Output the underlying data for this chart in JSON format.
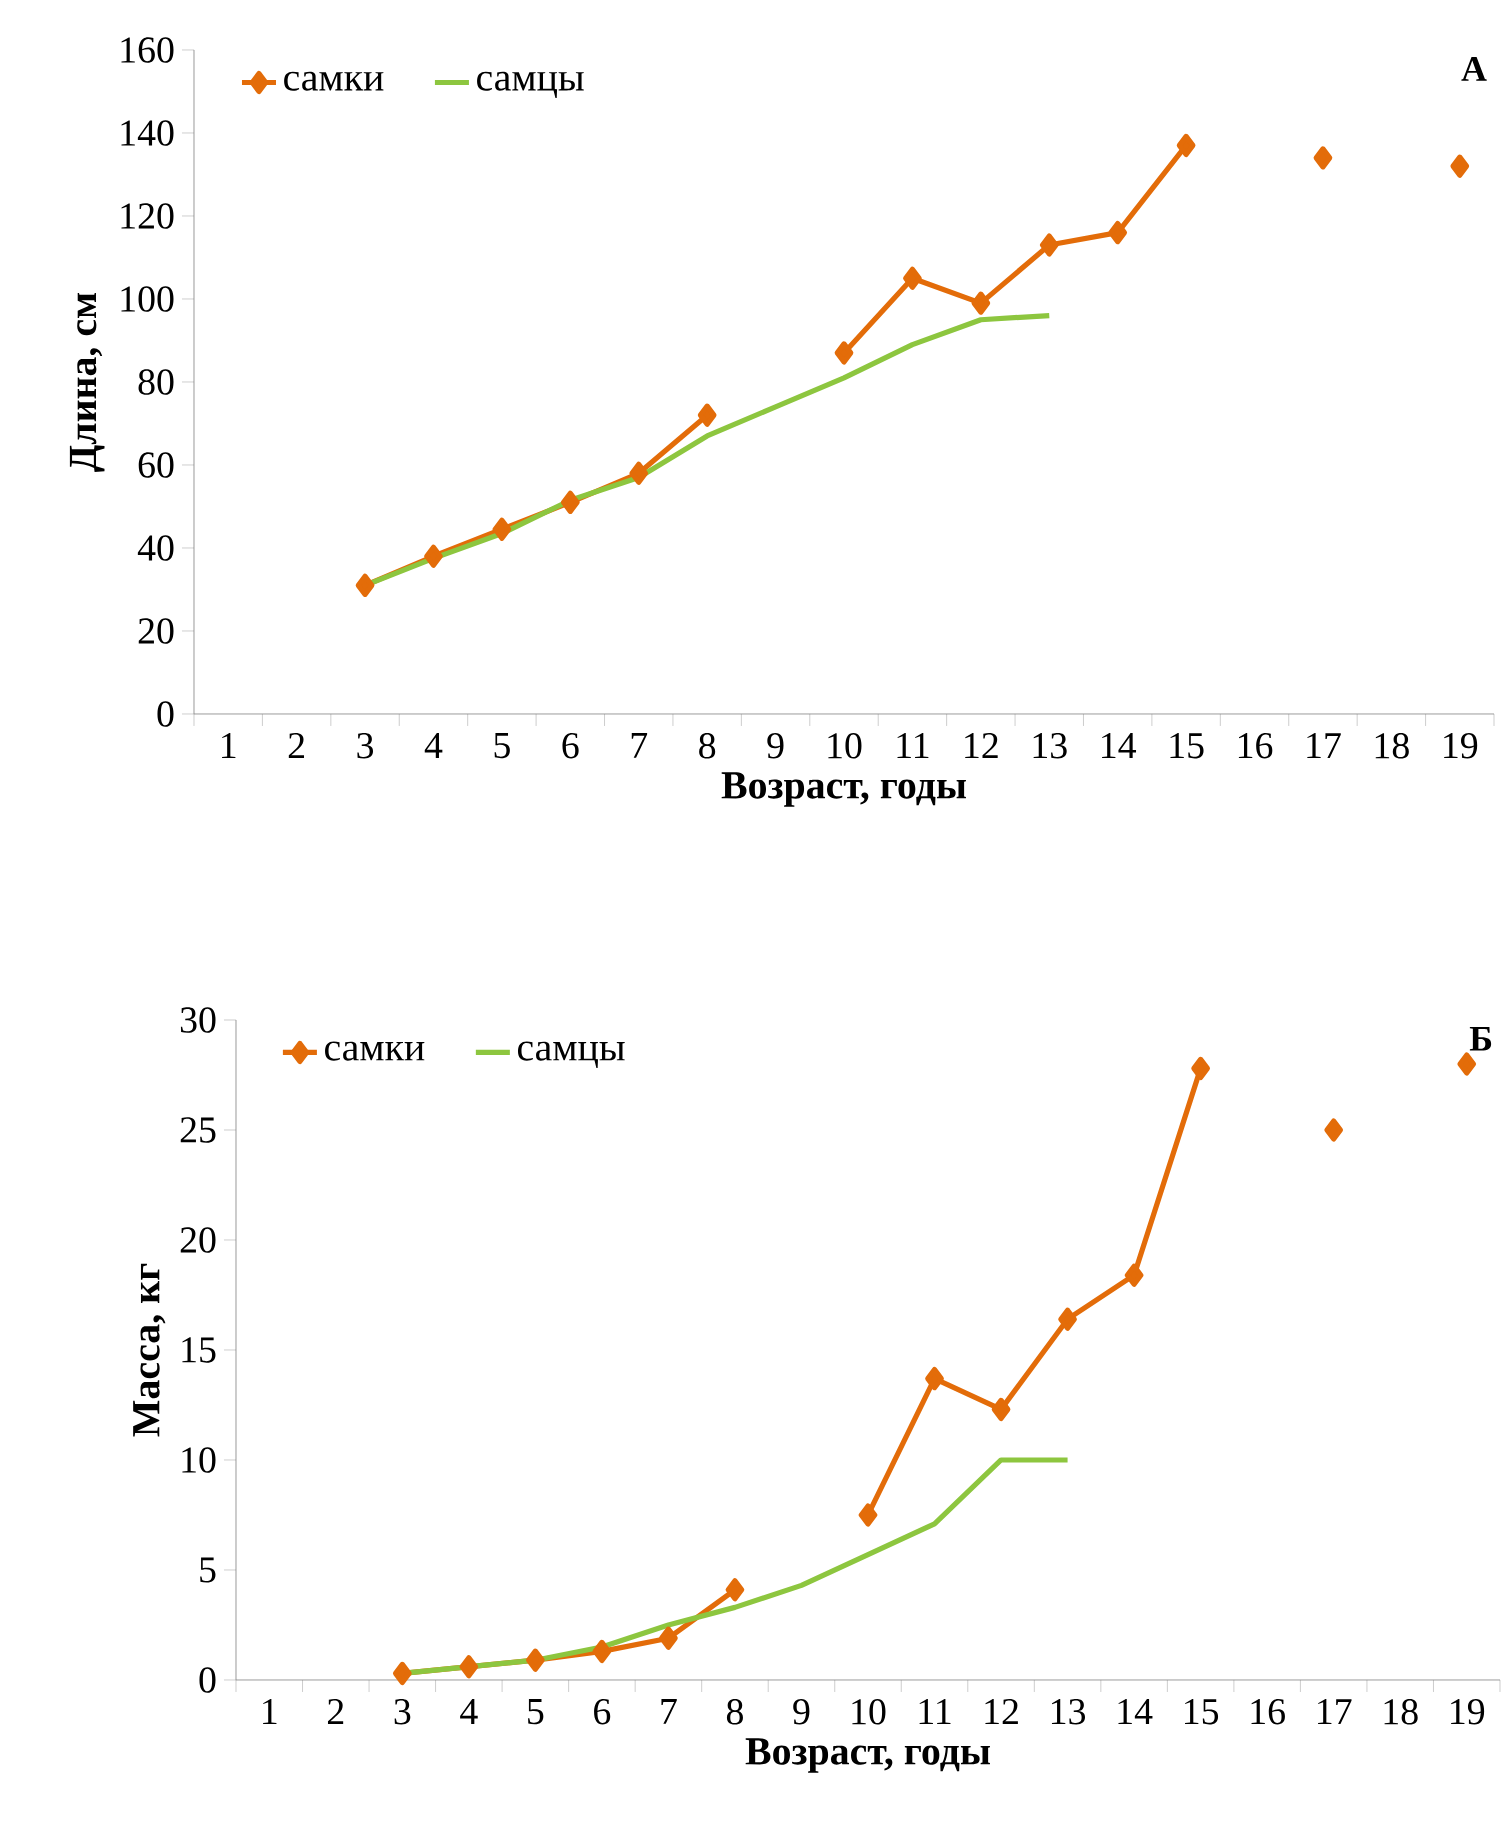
{
  "chart_data": [
    {
      "type": "line",
      "xlabel": "Возраст, годы",
      "ylabel": "Длина, см",
      "annotations": [
        "А"
      ],
      "legend": "top left",
      "ylim": [
        0,
        160
      ],
      "yticks": [
        0,
        20,
        40,
        60,
        80,
        100,
        120,
        140,
        160
      ],
      "categories": [
        "1",
        "2",
        "3",
        "4",
        "5",
        "6",
        "7",
        "8",
        "9",
        "10",
        "11",
        "12",
        "13",
        "14",
        "15",
        "16",
        "17",
        "18",
        "19"
      ],
      "series": [
        {
          "name": "самки",
          "color": "#e36c09",
          "marker": "diamond",
          "values": [
            null,
            null,
            31,
            38,
            44.5,
            51,
            58,
            72,
            null,
            87,
            105,
            99,
            113,
            116,
            137,
            null,
            134,
            null,
            132
          ]
        },
        {
          "name": "самцы",
          "color": "#8dc63f",
          "marker": "none",
          "values": [
            null,
            null,
            31,
            37.5,
            43.5,
            51.5,
            57,
            67,
            74,
            81,
            89,
            95,
            96,
            null,
            null,
            null,
            null,
            null,
            null
          ]
        }
      ]
    },
    {
      "type": "line",
      "xlabel": "Возраст, годы",
      "ylabel": "Масса, кг",
      "annotations": [
        "Б"
      ],
      "legend": "top left",
      "ylim": [
        0,
        30
      ],
      "yticks": [
        0,
        5,
        10,
        15,
        20,
        25,
        30
      ],
      "categories": [
        "1",
        "2",
        "3",
        "4",
        "5",
        "6",
        "7",
        "8",
        "9",
        "10",
        "11",
        "12",
        "13",
        "14",
        "15",
        "16",
        "17",
        "18",
        "19"
      ],
      "series": [
        {
          "name": "самки",
          "color": "#e36c09",
          "marker": "diamond",
          "values": [
            null,
            null,
            0.3,
            0.6,
            0.9,
            1.3,
            1.9,
            4.1,
            null,
            7.5,
            13.7,
            12.3,
            16.4,
            18.4,
            27.8,
            null,
            25,
            null,
            28
          ]
        },
        {
          "name": "самцы",
          "color": "#8dc63f",
          "marker": "none",
          "values": [
            null,
            null,
            0.3,
            0.6,
            0.9,
            1.5,
            2.5,
            3.3,
            4.3,
            5.7,
            7.1,
            10,
            10,
            null,
            null,
            null,
            null,
            null,
            null
          ]
        }
      ]
    }
  ]
}
